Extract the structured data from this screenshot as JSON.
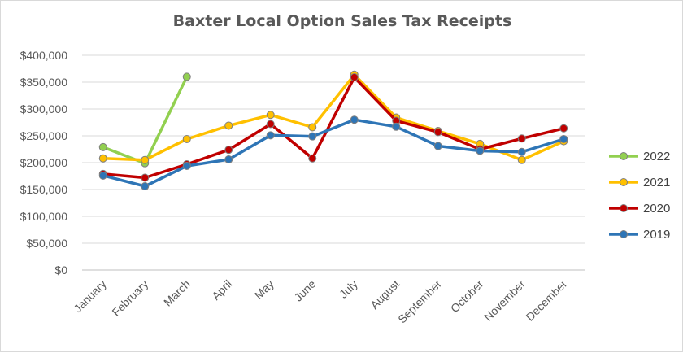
{
  "chart_data": {
    "type": "line",
    "title": "Baxter Local Option Sales Tax Receipts",
    "xlabel": "",
    "ylabel": "",
    "ylim": [
      0,
      400000
    ],
    "yticks": [
      0,
      50000,
      100000,
      150000,
      200000,
      250000,
      300000,
      350000,
      400000
    ],
    "ytick_labels": [
      "$0",
      "$50,000",
      "$100,000",
      "$150,000",
      "$200,000",
      "$250,000",
      "$300,000",
      "$350,000",
      "$400,000"
    ],
    "grid": true,
    "legend_position": "right",
    "categories": [
      "January",
      "February",
      "March",
      "April",
      "May",
      "June",
      "July",
      "August",
      "September",
      "October",
      "November",
      "December"
    ],
    "series": [
      {
        "name": "2022",
        "color": "#92d050",
        "values": [
          229000,
          199000,
          360000,
          null,
          null,
          null,
          null,
          null,
          null,
          null,
          null,
          null
        ]
      },
      {
        "name": "2021",
        "color": "#ffc000",
        "values": [
          208000,
          205000,
          244000,
          269000,
          289000,
          266000,
          364000,
          284000,
          259000,
          235000,
          205000,
          240000
        ]
      },
      {
        "name": "2020",
        "color": "#c00000",
        "values": [
          179000,
          172000,
          197000,
          224000,
          272000,
          208000,
          359000,
          278000,
          257000,
          225000,
          245000,
          264000
        ]
      },
      {
        "name": "2019",
        "color": "#2e75b6",
        "values": [
          176000,
          156000,
          194000,
          206000,
          251000,
          249000,
          280000,
          267000,
          231000,
          222000,
          220000,
          244000
        ]
      }
    ]
  }
}
